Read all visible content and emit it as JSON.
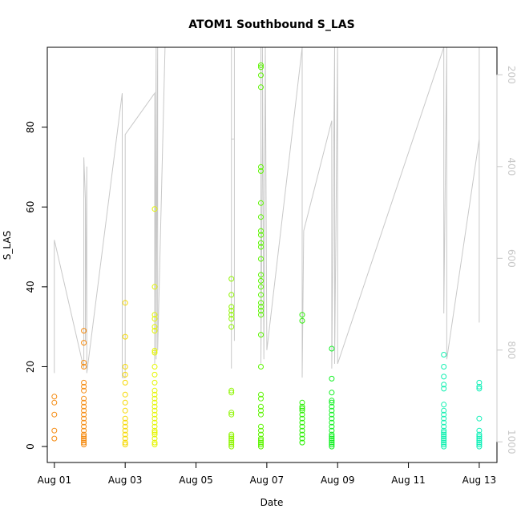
{
  "chart_data": {
    "type": "scatter",
    "title": "ATOM1 Southbound S_LAS",
    "xlabel": "Date",
    "ylabel": "S_LAS",
    "x_unit": "date",
    "xlim": [
      "2020-07-31T19:12",
      "2020-08-13T12:00"
    ],
    "ylim": [
      -4,
      100
    ],
    "x_ticks": [
      "Aug 01",
      "Aug 03",
      "Aug 05",
      "Aug 07",
      "Aug 09",
      "Aug 11",
      "Aug 13"
    ],
    "x_tick_dates": [
      "2020-08-01",
      "2020-08-03",
      "2020-08-05",
      "2020-08-07",
      "2020-08-09",
      "2020-08-11",
      "2020-08-13"
    ],
    "y_ticks": [
      0,
      20,
      40,
      60,
      80
    ],
    "y2_ticks": [
      200,
      400,
      600,
      800,
      1000
    ],
    "y2lim": [
      1045,
      140
    ],
    "y2_reversed": true,
    "grid": false,
    "legend": "none",
    "colors": {
      "axis": "#000000",
      "secondary_axis": "#c8c8c8",
      "line": "#c8c8c8"
    },
    "series": [
      {
        "color": "#f58a0f",
        "points": [
          [
            "2020-08-01T00:00",
            12.5
          ],
          [
            "2020-08-01T00:00",
            11
          ],
          [
            "2020-08-01T00:00",
            8
          ],
          [
            "2020-08-01T00:00",
            4
          ],
          [
            "2020-08-01T00:00",
            2
          ],
          [
            "2020-08-01T20:00",
            29
          ],
          [
            "2020-08-01T20:00",
            26
          ],
          [
            "2020-08-01T20:00",
            21
          ],
          [
            "2020-08-01T20:00",
            20
          ],
          [
            "2020-08-01T20:00",
            16
          ],
          [
            "2020-08-01T20:00",
            15
          ],
          [
            "2020-08-01T20:00",
            14
          ],
          [
            "2020-08-01T20:00",
            12
          ],
          [
            "2020-08-01T20:00",
            11
          ],
          [
            "2020-08-01T20:00",
            10
          ],
          [
            "2020-08-01T20:00",
            9
          ],
          [
            "2020-08-01T20:00",
            8
          ],
          [
            "2020-08-01T20:00",
            7
          ],
          [
            "2020-08-01T20:00",
            6
          ],
          [
            "2020-08-01T20:00",
            5
          ],
          [
            "2020-08-01T20:00",
            4
          ],
          [
            "2020-08-01T20:00",
            3
          ],
          [
            "2020-08-01T20:00",
            2.5
          ],
          [
            "2020-08-01T20:00",
            2
          ],
          [
            "2020-08-01T20:00",
            1.5
          ],
          [
            "2020-08-01T20:00",
            1
          ],
          [
            "2020-08-01T20:00",
            0.5
          ]
        ]
      },
      {
        "color": "#f5d800",
        "points": [
          [
            "2020-08-03T00:00",
            36
          ],
          [
            "2020-08-03T00:00",
            27.5
          ],
          [
            "2020-08-03T00:00",
            20
          ],
          [
            "2020-08-03T00:00",
            18
          ],
          [
            "2020-08-03T00:00",
            16
          ],
          [
            "2020-08-03T00:00",
            13
          ],
          [
            "2020-08-03T00:00",
            11
          ],
          [
            "2020-08-03T00:00",
            9
          ],
          [
            "2020-08-03T00:00",
            7
          ],
          [
            "2020-08-03T00:00",
            6
          ],
          [
            "2020-08-03T00:00",
            5
          ],
          [
            "2020-08-03T00:00",
            4
          ],
          [
            "2020-08-03T00:00",
            3
          ],
          [
            "2020-08-03T00:00",
            2
          ],
          [
            "2020-08-03T00:00",
            1
          ],
          [
            "2020-08-03T00:00",
            0.5
          ]
        ]
      },
      {
        "color": "#e4f500",
        "points": [
          [
            "2020-08-03T20:00",
            59.5
          ],
          [
            "2020-08-03T20:00",
            40
          ],
          [
            "2020-08-03T20:00",
            33
          ],
          [
            "2020-08-03T20:00",
            32
          ],
          [
            "2020-08-03T20:00",
            30
          ],
          [
            "2020-08-03T20:00",
            29
          ],
          [
            "2020-08-03T20:00",
            24
          ],
          [
            "2020-08-03T20:00",
            23.5
          ],
          [
            "2020-08-03T20:00",
            20
          ],
          [
            "2020-08-03T20:00",
            18
          ],
          [
            "2020-08-03T20:00",
            16
          ],
          [
            "2020-08-03T20:00",
            14
          ],
          [
            "2020-08-03T20:00",
            13
          ],
          [
            "2020-08-03T20:00",
            12
          ],
          [
            "2020-08-03T20:00",
            11
          ],
          [
            "2020-08-03T20:00",
            10
          ],
          [
            "2020-08-03T20:00",
            9
          ],
          [
            "2020-08-03T20:00",
            8
          ],
          [
            "2020-08-03T20:00",
            7
          ],
          [
            "2020-08-03T20:00",
            6
          ],
          [
            "2020-08-03T20:00",
            5
          ],
          [
            "2020-08-03T20:00",
            4
          ],
          [
            "2020-08-03T20:00",
            3.5
          ],
          [
            "2020-08-03T20:00",
            3
          ],
          [
            "2020-08-03T20:00",
            2
          ],
          [
            "2020-08-03T20:00",
            1
          ],
          [
            "2020-08-03T20:00",
            0.5
          ]
        ]
      },
      {
        "color": "#8ef500",
        "points": [
          [
            "2020-08-06T00:00",
            42
          ],
          [
            "2020-08-06T00:00",
            38
          ],
          [
            "2020-08-06T00:00",
            35
          ],
          [
            "2020-08-06T00:00",
            34
          ],
          [
            "2020-08-06T00:00",
            33
          ],
          [
            "2020-08-06T00:00",
            32
          ],
          [
            "2020-08-06T00:00",
            30
          ],
          [
            "2020-08-06T00:00",
            14
          ],
          [
            "2020-08-06T00:00",
            13.5
          ],
          [
            "2020-08-06T00:00",
            8.5
          ],
          [
            "2020-08-06T00:00",
            8
          ],
          [
            "2020-08-06T00:00",
            3
          ],
          [
            "2020-08-06T00:00",
            2.5
          ],
          [
            "2020-08-06T00:00",
            2
          ],
          [
            "2020-08-06T00:00",
            1.5
          ],
          [
            "2020-08-06T00:00",
            1
          ],
          [
            "2020-08-06T00:00",
            0.5
          ],
          [
            "2020-08-06T00:00",
            0
          ]
        ]
      },
      {
        "color": "#5cf500",
        "points": [
          [
            "2020-08-06T20:00",
            95.5
          ],
          [
            "2020-08-06T20:00",
            95
          ],
          [
            "2020-08-06T20:00",
            93
          ],
          [
            "2020-08-06T20:00",
            90
          ],
          [
            "2020-08-06T20:00",
            70
          ],
          [
            "2020-08-06T20:00",
            69
          ],
          [
            "2020-08-06T20:00",
            61
          ],
          [
            "2020-08-06T20:00",
            57.5
          ],
          [
            "2020-08-06T20:00",
            54
          ],
          [
            "2020-08-06T20:00",
            53
          ],
          [
            "2020-08-06T20:00",
            51
          ],
          [
            "2020-08-06T20:00",
            50
          ],
          [
            "2020-08-06T20:00",
            47
          ],
          [
            "2020-08-06T20:00",
            43
          ],
          [
            "2020-08-06T20:00",
            41.5
          ],
          [
            "2020-08-06T20:00",
            40
          ],
          [
            "2020-08-06T20:00",
            38
          ],
          [
            "2020-08-06T20:00",
            36
          ],
          [
            "2020-08-06T20:00",
            35
          ],
          [
            "2020-08-06T20:00",
            34
          ],
          [
            "2020-08-06T20:00",
            33
          ],
          [
            "2020-08-06T20:00",
            28
          ],
          [
            "2020-08-06T20:00",
            20
          ],
          [
            "2020-08-06T20:00",
            13
          ],
          [
            "2020-08-06T20:00",
            12
          ],
          [
            "2020-08-06T20:00",
            10
          ],
          [
            "2020-08-06T20:00",
            9
          ],
          [
            "2020-08-06T20:00",
            8
          ],
          [
            "2020-08-06T20:00",
            5
          ],
          [
            "2020-08-06T20:00",
            4
          ],
          [
            "2020-08-06T20:00",
            3
          ],
          [
            "2020-08-06T20:00",
            2
          ],
          [
            "2020-08-06T20:00",
            1.5
          ],
          [
            "2020-08-06T20:00",
            1
          ],
          [
            "2020-08-06T20:00",
            0.5
          ],
          [
            "2020-08-06T20:00",
            0
          ]
        ]
      },
      {
        "color": "#28f000",
        "points": [
          [
            "2020-08-08T00:00",
            33
          ],
          [
            "2020-08-08T00:00",
            31.5
          ],
          [
            "2020-08-08T00:00",
            11
          ],
          [
            "2020-08-08T00:00",
            10
          ],
          [
            "2020-08-08T00:00",
            9.5
          ],
          [
            "2020-08-08T00:00",
            9
          ],
          [
            "2020-08-08T00:00",
            8
          ],
          [
            "2020-08-08T00:00",
            7
          ],
          [
            "2020-08-08T00:00",
            6
          ],
          [
            "2020-08-08T00:00",
            5
          ],
          [
            "2020-08-08T00:00",
            4
          ],
          [
            "2020-08-08T00:00",
            3
          ],
          [
            "2020-08-08T00:00",
            2
          ],
          [
            "2020-08-08T00:00",
            1
          ]
        ]
      },
      {
        "color": "#0ff020",
        "points": [
          [
            "2020-08-08T20:00",
            24.5
          ],
          [
            "2020-08-08T20:00",
            17
          ],
          [
            "2020-08-08T20:00",
            13.5
          ],
          [
            "2020-08-08T20:00",
            11.5
          ],
          [
            "2020-08-08T20:00",
            11
          ],
          [
            "2020-08-08T20:00",
            10
          ],
          [
            "2020-08-08T20:00",
            9
          ],
          [
            "2020-08-08T20:00",
            8
          ],
          [
            "2020-08-08T20:00",
            7
          ],
          [
            "2020-08-08T20:00",
            6
          ],
          [
            "2020-08-08T20:00",
            5
          ],
          [
            "2020-08-08T20:00",
            4
          ],
          [
            "2020-08-08T20:00",
            3
          ],
          [
            "2020-08-08T20:00",
            2.5
          ],
          [
            "2020-08-08T20:00",
            2
          ],
          [
            "2020-08-08T20:00",
            1.5
          ],
          [
            "2020-08-08T20:00",
            1
          ],
          [
            "2020-08-08T20:00",
            0.5
          ],
          [
            "2020-08-08T20:00",
            0
          ]
        ]
      },
      {
        "color": "#10f0b0",
        "points": [
          [
            "2020-08-12T00:00",
            23
          ],
          [
            "2020-08-12T00:00",
            20
          ],
          [
            "2020-08-12T00:00",
            17.5
          ],
          [
            "2020-08-12T00:00",
            15.5
          ],
          [
            "2020-08-12T00:00",
            14.5
          ],
          [
            "2020-08-12T00:00",
            10.5
          ],
          [
            "2020-08-12T00:00",
            9
          ],
          [
            "2020-08-12T00:00",
            8
          ],
          [
            "2020-08-12T00:00",
            7
          ],
          [
            "2020-08-12T00:00",
            6
          ],
          [
            "2020-08-12T00:00",
            5
          ],
          [
            "2020-08-12T00:00",
            4
          ],
          [
            "2020-08-12T00:00",
            3.5
          ],
          [
            "2020-08-12T00:00",
            3
          ],
          [
            "2020-08-12T00:00",
            2.5
          ],
          [
            "2020-08-12T00:00",
            2
          ],
          [
            "2020-08-12T00:00",
            1.5
          ],
          [
            "2020-08-12T00:00",
            1
          ],
          [
            "2020-08-12T00:00",
            0.5
          ],
          [
            "2020-08-12T00:00",
            0
          ]
        ]
      },
      {
        "color": "#10f0b8",
        "points": [
          [
            "2020-08-13T00:00",
            16
          ],
          [
            "2020-08-13T00:00",
            15
          ],
          [
            "2020-08-13T00:00",
            14.5
          ],
          [
            "2020-08-13T00:00",
            7
          ],
          [
            "2020-08-13T00:00",
            4
          ],
          [
            "2020-08-13T00:00",
            3
          ],
          [
            "2020-08-13T00:00",
            2.5
          ],
          [
            "2020-08-13T00:00",
            2
          ],
          [
            "2020-08-13T00:00",
            1.5
          ],
          [
            "2020-08-13T00:00",
            1
          ],
          [
            "2020-08-13T00:00",
            0.5
          ],
          [
            "2020-08-13T00:00",
            0
          ]
        ]
      }
    ],
    "secondary_series": {
      "axis": "right",
      "color": "#c8c8c8",
      "points": [
        [
          "2020-08-01T00:00",
          850
        ],
        [
          "2020-08-01T00:00",
          560
        ],
        [
          "2020-08-01T20:00",
          840
        ],
        [
          "2020-08-01T20:00",
          380
        ],
        [
          "2020-08-01T21:00",
          470
        ],
        [
          "2020-08-01T21:00",
          780
        ],
        [
          "2020-08-01T22:00",
          400
        ],
        [
          "2020-08-01T22:00",
          850
        ],
        [
          "2020-08-02T22:00",
          240
        ],
        [
          "2020-08-02T22:00",
          860
        ],
        [
          "2020-08-03T00:00",
          860
        ],
        [
          "2020-08-03T00:00",
          330
        ],
        [
          "2020-08-03T20:00",
          240
        ],
        [
          "2020-08-03T20:00",
          830
        ],
        [
          "2020-08-03T21:00",
          140
        ],
        [
          "2020-08-03T21:00",
          820
        ],
        [
          "2020-08-03T22:00",
          140
        ],
        [
          "2020-08-03T22:00",
          800
        ],
        [
          "2020-08-04T03:00",
          140
        ],
        [
          "2020-08-06T00:00",
          140
        ],
        [
          "2020-08-06T00:00",
          840
        ],
        [
          "2020-08-06T00:00",
          340
        ],
        [
          "2020-08-06T02:00",
          340
        ],
        [
          "2020-08-06T02:00",
          780
        ],
        [
          "2020-08-06T02:00",
          140
        ],
        [
          "2020-08-06T20:00",
          140
        ],
        [
          "2020-08-06T20:00",
          830
        ],
        [
          "2020-08-06T21:00",
          330
        ],
        [
          "2020-08-06T21:00",
          140
        ],
        [
          "2020-08-06T22:00",
          820
        ],
        [
          "2020-08-06T23:00",
          140
        ],
        [
          "2020-08-07T00:00",
          800
        ],
        [
          "2020-08-08T00:00",
          140
        ],
        [
          "2020-08-08T00:00",
          860
        ],
        [
          "2020-08-08T01:00",
          540
        ],
        [
          "2020-08-08T20:00",
          300
        ],
        [
          "2020-08-08T20:00",
          840
        ],
        [
          "2020-08-08T22:00",
          140
        ],
        [
          "2020-08-08T22:00",
          830
        ],
        [
          "2020-08-09T00:00",
          140
        ],
        [
          "2020-08-09T00:00",
          830
        ],
        [
          "2020-08-12T00:00",
          140
        ],
        [
          "2020-08-12T00:00",
          720
        ],
        [
          "2020-08-12T02:00",
          140
        ],
        [
          "2020-08-12T02:00",
          820
        ],
        [
          "2020-08-13T00:00",
          340
        ],
        [
          "2020-08-13T00:00",
          140
        ],
        [
          "2020-08-13T00:00",
          740
        ]
      ]
    }
  }
}
